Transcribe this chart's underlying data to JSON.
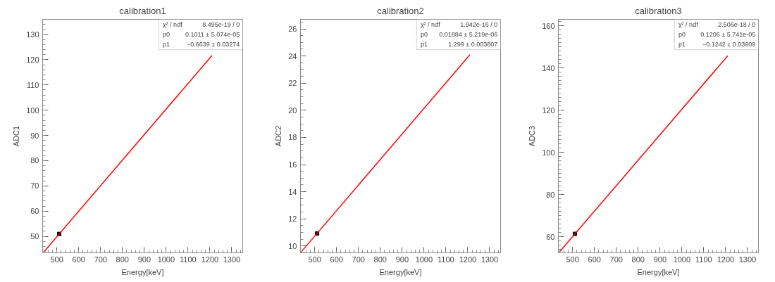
{
  "chart_data": [
    {
      "type": "line",
      "title": "calibration1",
      "xlabel": "Energy[keV]",
      "ylabel": "ADC1",
      "xlim": [
        435,
        1350
      ],
      "ylim": [
        43.5,
        136
      ],
      "xticks": [
        500,
        600,
        700,
        800,
        900,
        1000,
        1100,
        1200,
        1300
      ],
      "yticks": [
        50,
        60,
        70,
        80,
        90,
        100,
        110,
        120,
        130
      ],
      "grid": false,
      "series": [
        {
          "type": "scatter",
          "marker": "square",
          "color": "#000000",
          "x": [
            511
          ],
          "values": [
            51.0
          ]
        },
        {
          "color": "#ff0000",
          "x": [
            440,
            1210
          ],
          "values": [
            43.8,
            121.7
          ]
        }
      ],
      "annotations": [
        "χ² / ndf",
        "8.495e-19 / 0",
        "p0",
        "0.1011 ± 5.074e-05",
        "p1",
        "−0.6639 ± 0.03274"
      ]
    },
    {
      "type": "line",
      "title": "calibration2",
      "xlabel": "Energy[keV]",
      "ylabel": "ADC2",
      "xlim": [
        435,
        1350
      ],
      "ylim": [
        9.5,
        26.7
      ],
      "xticks": [
        500,
        600,
        700,
        800,
        900,
        1000,
        1100,
        1200,
        1300
      ],
      "yticks": [
        10,
        12,
        14,
        16,
        18,
        20,
        22,
        24,
        26
      ],
      "grid": false,
      "series": [
        {
          "type": "scatter",
          "marker": "square",
          "color": "#000000",
          "x": [
            511
          ],
          "values": [
            10.93
          ]
        },
        {
          "color": "#ff0000",
          "x": [
            436,
            1210
          ],
          "values": [
            9.52,
            24.1
          ]
        }
      ],
      "annotations": [
        "χ² / ndf",
        "1.942e-16 / 0",
        "p0",
        "0.01884 ± 5.219e-06",
        "p1",
        "1.299 ± 0.003807"
      ]
    },
    {
      "type": "line",
      "title": "calibration3",
      "xlabel": "Energy[keV]",
      "ylabel": "ADC3",
      "xlim": [
        435,
        1350
      ],
      "ylim": [
        52.5,
        163
      ],
      "xticks": [
        500,
        600,
        700,
        800,
        900,
        1000,
        1100,
        1200,
        1300
      ],
      "yticks": [
        60,
        80,
        100,
        120,
        140,
        160
      ],
      "grid": false,
      "series": [
        {
          "type": "scatter",
          "marker": "square",
          "color": "#000000",
          "x": [
            511
          ],
          "values": [
            61.5
          ]
        },
        {
          "color": "#ff0000",
          "x": [
            440,
            1210
          ],
          "values": [
            52.9,
            145.8
          ]
        }
      ],
      "annotations": [
        "χ² / ndf",
        "2.506e-18 / 0",
        "p0",
        "0.1206 ± 5.741e-05",
        "p1",
        "−0.1242 ± 0.03909"
      ]
    }
  ]
}
